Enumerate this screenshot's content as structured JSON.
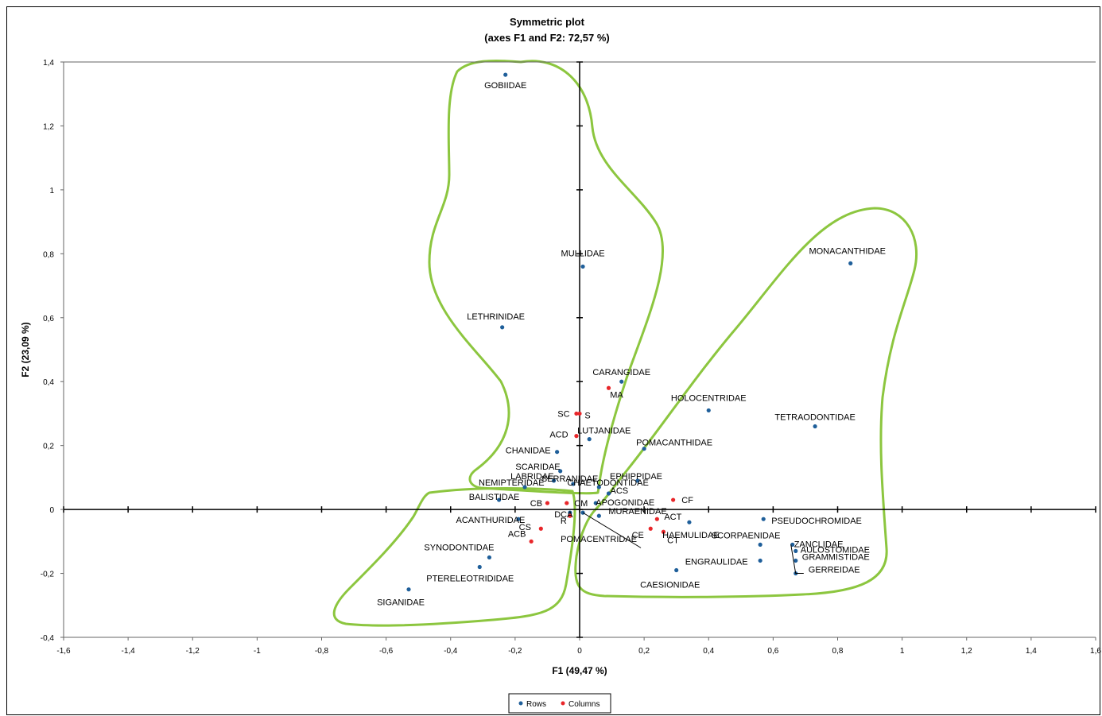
{
  "chart_data": {
    "type": "scatter",
    "title": "Symmetric plot",
    "subtitle": "(axes F1 and F2: 72,57 %)",
    "xlabel": "F1 (49,47 %)",
    "ylabel": "F2 (23,09 %)",
    "xlim": [
      -1.6,
      1.6
    ],
    "ylim": [
      -0.4,
      1.4
    ],
    "x_ticks": [
      "-1,6",
      "-1,4",
      "-1,2",
      "-1",
      "-0,8",
      "-0,6",
      "-0,4",
      "-0,2",
      "0",
      "0,2",
      "0,4",
      "0,6",
      "0,8",
      "1",
      "1,2",
      "1,4",
      "1,6"
    ],
    "y_ticks": [
      "-0,4",
      "-0,2",
      "0",
      "0,2",
      "0,4",
      "0,6",
      "0,8",
      "1",
      "1,2",
      "1,4"
    ],
    "legend": {
      "placement": "bottom-center",
      "entries": [
        "Rows",
        "Columns"
      ]
    },
    "colors": {
      "rows": "#1f5f9a",
      "columns": "#e8262a",
      "hull": "#8cc63f"
    },
    "series": [
      {
        "name": "Rows",
        "points": [
          {
            "label": "GOBIIDAE",
            "x": -0.23,
            "y": 1.36
          },
          {
            "label": "MULLIDAE",
            "x": 0.01,
            "y": 0.76
          },
          {
            "label": "LETHRINIDAE",
            "x": -0.24,
            "y": 0.57
          },
          {
            "label": "MONACANTHIDAE",
            "x": 0.84,
            "y": 0.77
          },
          {
            "label": "CARANGIDAE",
            "x": 0.13,
            "y": 0.4
          },
          {
            "label": "HOLOCENTRIDAE",
            "x": 0.4,
            "y": 0.31
          },
          {
            "label": "TETRAODONTIDAE",
            "x": 0.73,
            "y": 0.26
          },
          {
            "label": "LUTJANIDAE",
            "x": 0.03,
            "y": 0.22
          },
          {
            "label": "POMACANTHIDAE",
            "x": 0.2,
            "y": 0.19
          },
          {
            "label": "CHANIDAE",
            "x": -0.07,
            "y": 0.18
          },
          {
            "label": "SCARIDAE",
            "x": -0.06,
            "y": 0.12
          },
          {
            "label": "LABRIDAE",
            "x": -0.08,
            "y": 0.09
          },
          {
            "label": "SERRANIDAE",
            "x": -0.02,
            "y": 0.08
          },
          {
            "label": "EPHIPPIDAE",
            "x": 0.18,
            "y": 0.09
          },
          {
            "label": "NEMIPTERIDAE",
            "x": -0.17,
            "y": 0.07
          },
          {
            "label": "CHAETODONTIDAE",
            "x": 0.06,
            "y": 0.07
          },
          {
            "label": "ACS",
            "x": 0.09,
            "y": 0.05
          },
          {
            "label": "BALISTIDAE",
            "x": -0.25,
            "y": 0.03
          },
          {
            "label": "APOGONIDAE",
            "x": 0.05,
            "y": 0.02
          },
          {
            "label": "MURAENIDAE",
            "x": 0.06,
            "y": -0.02
          },
          {
            "label": "DCA",
            "x": -0.03,
            "y": -0.01
          },
          {
            "label": "ACANTHURIDAE",
            "x": -0.19,
            "y": -0.03
          },
          {
            "label": "HAEMULIDAE",
            "x": 0.34,
            "y": -0.04
          },
          {
            "label": "PSEUDOCHROMIDAE",
            "x": 0.57,
            "y": -0.03
          },
          {
            "label": "SCORPAENIDAE",
            "x": 0.56,
            "y": -0.11
          },
          {
            "label": "ZANCLIDAE",
            "x": 0.66,
            "y": -0.11
          },
          {
            "label": "AULOSTOMIDAE",
            "x": 0.67,
            "y": -0.13
          },
          {
            "label": "GRAMMISTIDAE",
            "x": 0.67,
            "y": -0.16
          },
          {
            "label": "GERREIDAE",
            "x": 0.67,
            "y": -0.2
          },
          {
            "label": "ENGRAULIDAE",
            "x": 0.56,
            "y": -0.16
          },
          {
            "label": "POMACENTRIDAE",
            "x": 0.01,
            "y": -0.01
          },
          {
            "label": "CAESIONIDAE",
            "x": 0.3,
            "y": -0.19
          },
          {
            "label": "SYNODONTIDAE",
            "x": -0.28,
            "y": -0.15
          },
          {
            "label": "PTERELEOTRIDIDAE",
            "x": -0.31,
            "y": -0.18
          },
          {
            "label": "SIGANIDAE",
            "x": -0.53,
            "y": -0.25
          }
        ]
      },
      {
        "name": "Columns",
        "points": [
          {
            "label": "MA",
            "x": 0.09,
            "y": 0.38
          },
          {
            "label": "S",
            "x": 0.0,
            "y": 0.3
          },
          {
            "label": "SC",
            "x": -0.01,
            "y": 0.3
          },
          {
            "label": "ACD",
            "x": -0.01,
            "y": 0.23
          },
          {
            "label": "CF",
            "x": 0.29,
            "y": 0.03
          },
          {
            "label": "CB",
            "x": -0.1,
            "y": 0.02
          },
          {
            "label": "CM",
            "x": -0.04,
            "y": 0.02
          },
          {
            "label": "R",
            "x": -0.03,
            "y": -0.02
          },
          {
            "label": "CS",
            "x": -0.12,
            "y": -0.06
          },
          {
            "label": "ACB",
            "x": -0.15,
            "y": -0.1
          },
          {
            "label": "ACT",
            "x": 0.24,
            "y": -0.03
          },
          {
            "label": "CE",
            "x": 0.22,
            "y": -0.06
          },
          {
            "label": "CT",
            "x": 0.26,
            "y": -0.07
          }
        ]
      }
    ]
  }
}
